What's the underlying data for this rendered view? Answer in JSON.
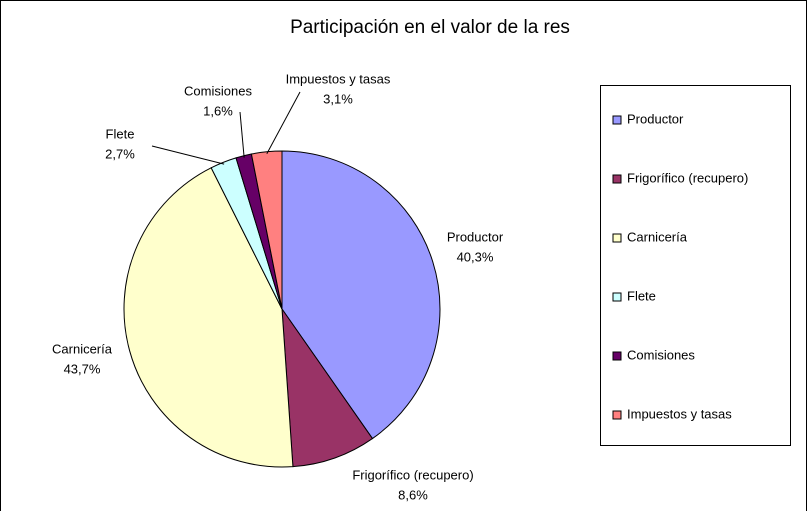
{
  "chart_data": {
    "type": "pie",
    "title": "Participación en el valor de la res",
    "categories": [
      "Productor",
      "Frigorífico (recupero)",
      "Carnicería",
      "Flete",
      "Comisiones",
      "Impuestos y tasas"
    ],
    "values": [
      40.3,
      8.6,
      43.7,
      2.7,
      1.6,
      3.1
    ],
    "value_labels": [
      "40,3%",
      "8,6%",
      "43,7%",
      "2,7%",
      "1,6%",
      "3,1%"
    ],
    "colors": [
      "#9999ff",
      "#993366",
      "#ffffcc",
      "#ccffff",
      "#660066",
      "#ff8080"
    ],
    "legend": "right"
  }
}
